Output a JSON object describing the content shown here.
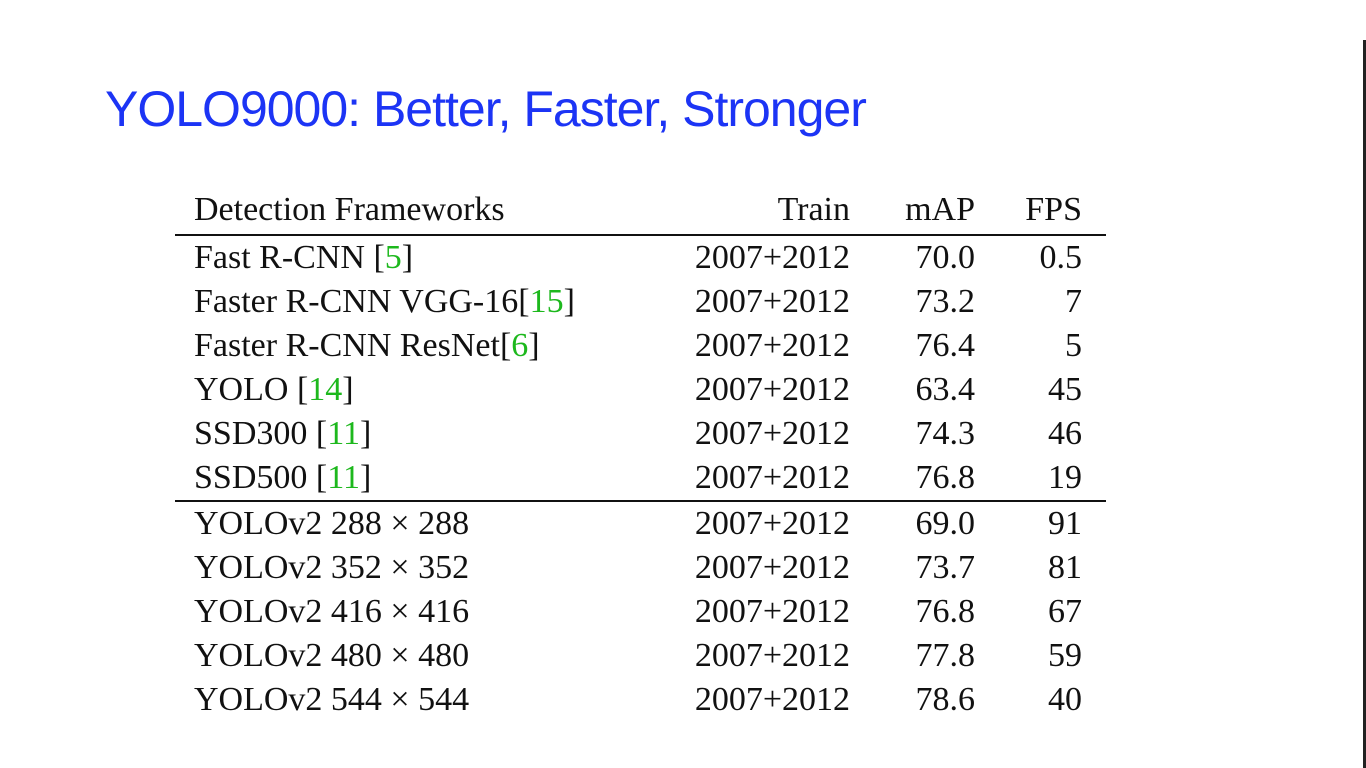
{
  "slide": {
    "title": "YOLO9000: Better, Faster, Stronger"
  },
  "table": {
    "headers": {
      "name": "Detection Frameworks",
      "train": "Train",
      "map": "mAP",
      "fps": "FPS"
    },
    "rows": [
      {
        "name": "Fast R-CNN ",
        "cite": "5",
        "cite_open": "[",
        "cite_close": "]",
        "train": "2007+2012",
        "map": "70.0",
        "fps": "0.5"
      },
      {
        "name": "Faster R-CNN VGG-16",
        "cite": "15",
        "cite_open": "[",
        "cite_close": "]",
        "train": "2007+2012",
        "map": "73.2",
        "fps": "7"
      },
      {
        "name": "Faster R-CNN ResNet",
        "cite": "6",
        "cite_open": "[",
        "cite_close": "]",
        "train": "2007+2012",
        "map": "76.4",
        "fps": "5"
      },
      {
        "name": "YOLO ",
        "cite": "14",
        "cite_open": "[",
        "cite_close": "]",
        "train": "2007+2012",
        "map": "63.4",
        "fps": "45"
      },
      {
        "name": "SSD300 ",
        "cite": "11",
        "cite_open": "[",
        "cite_close": "]",
        "train": "2007+2012",
        "map": "74.3",
        "fps": "46"
      },
      {
        "name": "SSD500 ",
        "cite": "11",
        "cite_open": "[",
        "cite_close": "]",
        "train": "2007+2012",
        "map": "76.8",
        "fps": "19"
      },
      {
        "name": "YOLOv2 288 × 288",
        "train": "2007+2012",
        "map": "69.0",
        "fps": "91"
      },
      {
        "name": "YOLOv2 352 × 352",
        "train": "2007+2012",
        "map": "73.7",
        "fps": "81"
      },
      {
        "name": "YOLOv2 416 × 416",
        "train": "2007+2012",
        "map": "76.8",
        "fps": "67"
      },
      {
        "name": "YOLOv2 480 × 480",
        "train": "2007+2012",
        "map": "77.8",
        "fps": "59"
      },
      {
        "name": "YOLOv2 544 × 544",
        "train": "2007+2012",
        "map": "78.6",
        "fps": "40",
        "map_bold": true
      }
    ]
  }
}
